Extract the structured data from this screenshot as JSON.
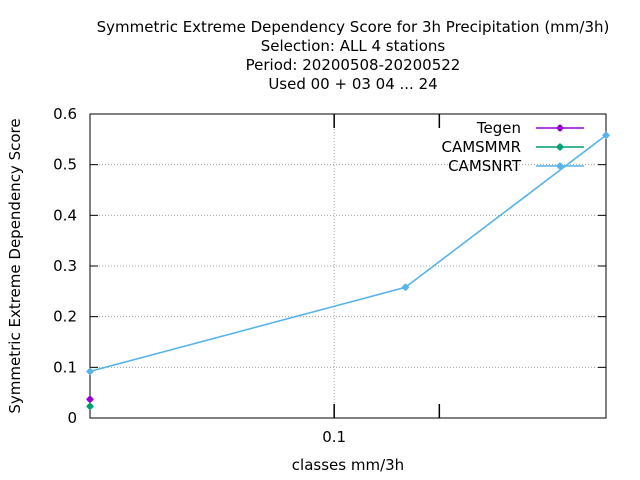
{
  "chart_data": {
    "type": "line",
    "title_lines": [
      "Symmetric Extreme Dependency Score  for 3h Precipitation (mm/3h)",
      "Selection: ALL      4 stations",
      "Period: 20200508-20200522",
      "Used  00 + 03 04 ... 24"
    ],
    "xlabel": "classes mm/3h",
    "ylabel": "Symmetric Extreme Dependency Score",
    "x_scale": "log",
    "xlim": [
      0.02,
      0.6
    ],
    "ylim": [
      0,
      0.6
    ],
    "x_ticks": [
      {
        "value": 0.1,
        "label": "0.1"
      }
    ],
    "x_minor_ticks": [
      0.2
    ],
    "y_ticks": [
      {
        "value": 0,
        "label": "0"
      },
      {
        "value": 0.1,
        "label": "0.1"
      },
      {
        "value": 0.2,
        "label": "0.2"
      },
      {
        "value": 0.3,
        "label": "0.3"
      },
      {
        "value": 0.4,
        "label": "0.4"
      },
      {
        "value": 0.5,
        "label": "0.5"
      },
      {
        "value": 0.6,
        "label": "0.6"
      }
    ],
    "grid": true,
    "legend_position": "top-right",
    "series": [
      {
        "name": "Tegen",
        "color": "#9400d3",
        "x": [
          0.02
        ],
        "y": [
          0.037
        ]
      },
      {
        "name": "CAMSMMR",
        "color": "#009e73",
        "x": [
          0.02
        ],
        "y": [
          0.023
        ]
      },
      {
        "name": "CAMSNRT",
        "color": "#56b4e9",
        "x": [
          0.02,
          0.16,
          0.6
        ],
        "y": [
          0.092,
          0.258,
          0.558
        ]
      }
    ]
  }
}
